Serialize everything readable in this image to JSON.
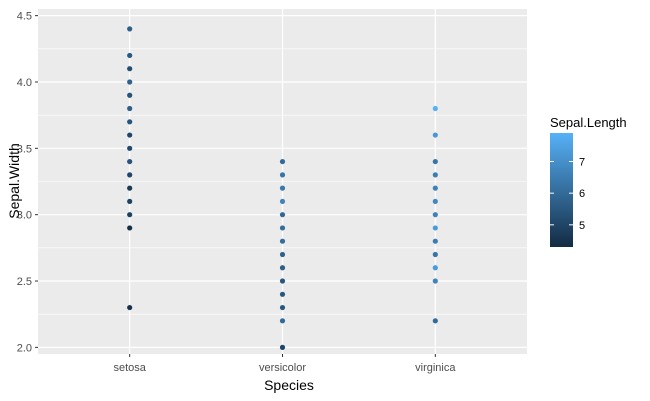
{
  "chart_data": {
    "type": "scatter",
    "xlabel": "Species",
    "ylabel": "Sepal.Width",
    "categories": [
      "setosa",
      "versicolor",
      "virginica"
    ],
    "ylim": [
      1.95,
      4.55
    ],
    "y_ticks": [
      "2.0",
      "2.5",
      "3.0",
      "3.5",
      "4.0",
      "4.5"
    ],
    "y_tick_values": [
      2.0,
      2.5,
      3.0,
      3.5,
      4.0,
      4.5
    ],
    "grid": true,
    "panel_background": "#ebebeb",
    "grid_color": "#ffffff",
    "color_scale": {
      "low": "#132b43",
      "high": "#56b1f7",
      "range": [
        4.3,
        7.9
      ]
    },
    "legend": {
      "title": "Sepal.Length",
      "placement": "right",
      "breaks": [
        5,
        6,
        7
      ],
      "break_labels": [
        "5",
        "6",
        "7"
      ]
    },
    "points": [
      {
        "species": "setosa",
        "y": 4.4,
        "color": 5.7
      },
      {
        "species": "setosa",
        "y": 4.2,
        "color": 5.5
      },
      {
        "species": "setosa",
        "y": 4.1,
        "color": 5.2
      },
      {
        "species": "setosa",
        "y": 4.0,
        "color": 5.8
      },
      {
        "species": "setosa",
        "y": 3.9,
        "color": 5.4
      },
      {
        "species": "setosa",
        "y": 3.8,
        "color": 5.7
      },
      {
        "species": "setosa",
        "y": 3.7,
        "color": 5.4
      },
      {
        "species": "setosa",
        "y": 3.6,
        "color": 5.0
      },
      {
        "species": "setosa",
        "y": 3.5,
        "color": 5.1
      },
      {
        "species": "setosa",
        "y": 3.4,
        "color": 5.4
      },
      {
        "species": "setosa",
        "y": 3.3,
        "color": 5.0
      },
      {
        "species": "setosa",
        "y": 3.2,
        "color": 4.7
      },
      {
        "species": "setosa",
        "y": 3.1,
        "color": 4.9
      },
      {
        "species": "setosa",
        "y": 3.0,
        "color": 4.9
      },
      {
        "species": "setosa",
        "y": 2.9,
        "color": 4.4
      },
      {
        "species": "setosa",
        "y": 2.3,
        "color": 4.5
      },
      {
        "species": "versicolor",
        "y": 3.4,
        "color": 6.0
      },
      {
        "species": "versicolor",
        "y": 3.3,
        "color": 6.3
      },
      {
        "species": "versicolor",
        "y": 3.2,
        "color": 6.4
      },
      {
        "species": "versicolor",
        "y": 3.1,
        "color": 6.7
      },
      {
        "species": "versicolor",
        "y": 3.0,
        "color": 5.9
      },
      {
        "species": "versicolor",
        "y": 2.9,
        "color": 6.1
      },
      {
        "species": "versicolor",
        "y": 2.8,
        "color": 6.1
      },
      {
        "species": "versicolor",
        "y": 2.7,
        "color": 5.8
      },
      {
        "species": "versicolor",
        "y": 2.6,
        "color": 5.7
      },
      {
        "species": "versicolor",
        "y": 2.5,
        "color": 5.5
      },
      {
        "species": "versicolor",
        "y": 2.4,
        "color": 5.5
      },
      {
        "species": "versicolor",
        "y": 2.3,
        "color": 5.5
      },
      {
        "species": "versicolor",
        "y": 2.2,
        "color": 6.0
      },
      {
        "species": "versicolor",
        "y": 2.0,
        "color": 5.0
      },
      {
        "species": "virginica",
        "y": 3.8,
        "color": 7.9
      },
      {
        "species": "virginica",
        "y": 3.6,
        "color": 7.2
      },
      {
        "species": "virginica",
        "y": 3.4,
        "color": 6.3
      },
      {
        "species": "virginica",
        "y": 3.3,
        "color": 6.5
      },
      {
        "species": "virginica",
        "y": 3.2,
        "color": 6.6
      },
      {
        "species": "virginica",
        "y": 3.1,
        "color": 6.8
      },
      {
        "species": "virginica",
        "y": 3.0,
        "color": 6.6
      },
      {
        "species": "virginica",
        "y": 2.9,
        "color": 7.3
      },
      {
        "species": "virginica",
        "y": 2.8,
        "color": 6.5
      },
      {
        "species": "virginica",
        "y": 2.7,
        "color": 6.3
      },
      {
        "species": "virginica",
        "y": 2.6,
        "color": 7.3
      },
      {
        "species": "virginica",
        "y": 2.5,
        "color": 6.7
      },
      {
        "species": "virginica",
        "y": 2.2,
        "color": 6.0
      }
    ]
  }
}
